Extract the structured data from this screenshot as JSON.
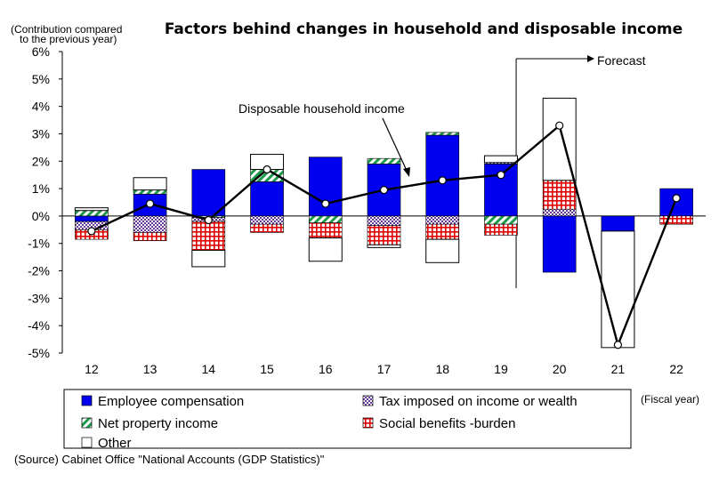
{
  "chart_data": {
    "type": "bar",
    "title": "Factors behind changes in household and disposable income",
    "ylabel": "(Contribution compared to the previous year)",
    "ylabel_lines": [
      "(Contribution compared",
      "to the previous year)"
    ],
    "xlabel": "(Fiscal year)",
    "source": "(Source) Cabinet Office \"National Accounts (GDP Statistics)\"",
    "ylim": [
      -5,
      6
    ],
    "y_ticks": [
      "6%",
      "5%",
      "4%",
      "3%",
      "2%",
      "1%",
      "0%",
      "-1%",
      "-2%",
      "-3%",
      "-4%",
      "-5%"
    ],
    "categories": [
      "12",
      "13",
      "14",
      "15",
      "16",
      "17",
      "18",
      "19",
      "20",
      "21",
      "22"
    ],
    "stacked": true,
    "series": [
      {
        "name": "Employee compensation",
        "color": "#0000ee",
        "pattern": "solid",
        "values": [
          -0.2,
          0.8,
          1.7,
          1.25,
          2.15,
          1.9,
          2.95,
          1.9,
          -2.05,
          -0.55,
          1.0
        ]
      },
      {
        "name": "Net property income",
        "color": "#1f9a4a",
        "pattern": "diagonal",
        "values": [
          0.2,
          0.15,
          -0.05,
          0.45,
          -0.25,
          0.2,
          0.1,
          -0.3,
          0.0,
          0.0,
          0.0
        ]
      },
      {
        "name": "Tax imposed on income or wealth",
        "color": "#6a3a9a",
        "pattern": "checker",
        "values": [
          -0.3,
          -0.6,
          -0.15,
          -0.3,
          0.0,
          -0.35,
          -0.3,
          0.05,
          0.25,
          0.0,
          0.0
        ]
      },
      {
        "name": "Social benefits -burden",
        "color": "#e00000",
        "pattern": "grid",
        "values": [
          -0.35,
          -0.3,
          -1.05,
          -0.3,
          -0.55,
          -0.7,
          -0.55,
          -0.4,
          1.05,
          0.0,
          -0.3
        ]
      },
      {
        "name": "Other",
        "color": "#ffffff",
        "pattern": "empty",
        "values": [
          0.1,
          0.45,
          -0.6,
          0.55,
          -0.85,
          -0.1,
          -0.85,
          0.25,
          3.0,
          -4.25,
          0.0
        ]
      }
    ],
    "line_series": {
      "name": "Disposable household income",
      "values": [
        -0.55,
        0.45,
        -0.15,
        1.7,
        0.45,
        0.95,
        1.3,
        1.5,
        3.3,
        -4.7,
        0.65
      ]
    },
    "annotations": [
      {
        "text": "Disposable household income"
      },
      {
        "text": "Forecast"
      }
    ],
    "legend": {
      "placement": "bottom",
      "items": [
        {
          "name": "Employee compensation",
          "pattern": "solid"
        },
        {
          "name": "Tax imposed on income or wealth",
          "pattern": "checker"
        },
        {
          "name": "Net property income",
          "pattern": "diagonal"
        },
        {
          "name": "Social benefits -burden",
          "pattern": "grid"
        },
        {
          "name": "Other",
          "pattern": "empty"
        }
      ]
    },
    "grid": false
  }
}
